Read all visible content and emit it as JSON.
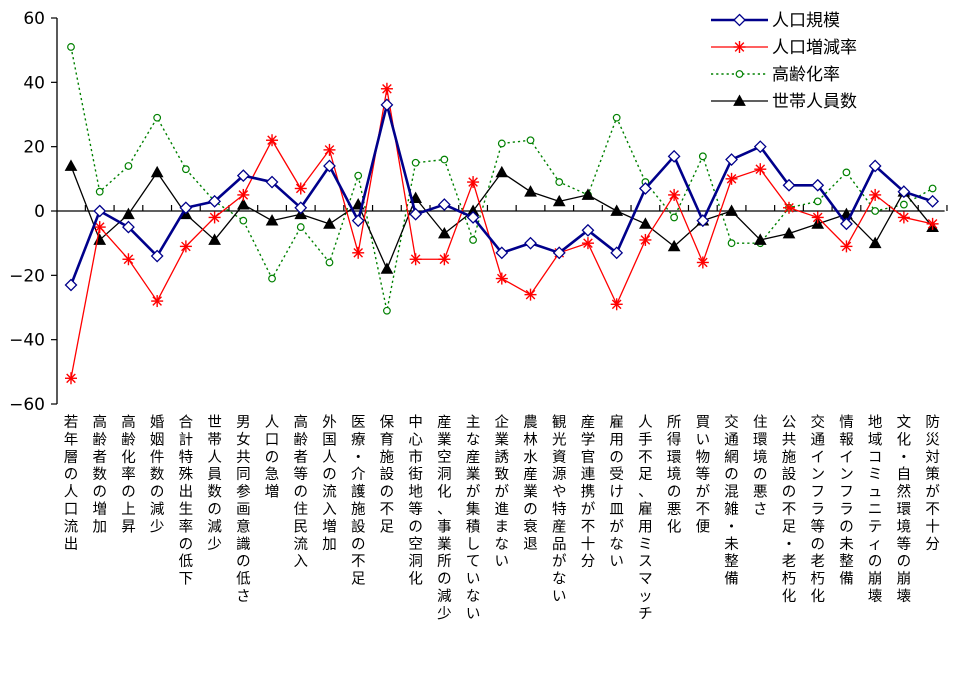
{
  "chart_data": {
    "type": "line",
    "ylim": [
      -60,
      60
    ],
    "yticks": [
      "60",
      "40",
      "20",
      "0",
      "−20",
      "−40",
      "−60"
    ],
    "grid": false,
    "legend_position": "top-right",
    "categories": [
      "若年層の人口流出",
      "高齢者数の増加",
      "高齢化率の上昇",
      "婚姻件数の減少",
      "合計特殊出生率の低下",
      "世帯人員数の減少",
      "男女共同参画意識の低さ",
      "人口の急増",
      "高齢者等の住民流入",
      "外国人の流入増加",
      "医療・介護施設の不足",
      "保育施設の不足",
      "中心市街地等の空洞化",
      "産業空洞化、事業所の減少",
      "主な産業が集積していない",
      "企業誘致が進まない",
      "農林水産業の衰退",
      "観光資源や特産品がない",
      "産学官連携が不十分",
      "雇用の受け皿がない",
      "人手不足、雇用ミスマッチ",
      "所得環境の悪化",
      "買い物等が不便",
      "交通網の混雑・未整備",
      "住環境の悪さ",
      "公共施設の不足・老朽化",
      "交通インフラ等の老朽化",
      "情報インフラの未整備",
      "地域コミュニティの崩壊",
      "文化・自然環境等の崩壊",
      "防災対策が不十分"
    ],
    "series": [
      {
        "name": "人口規模",
        "color": "#00008B",
        "marker": "diamond",
        "line": "solid-thick",
        "values": [
          -23,
          0,
          -5,
          -14,
          1,
          3,
          11,
          9,
          1,
          14,
          -3,
          33,
          -1,
          2,
          -2,
          -13,
          -10,
          -13,
          -6,
          -13,
          7,
          17,
          -3,
          16,
          20,
          8,
          8,
          -4,
          14,
          6,
          3
        ]
      },
      {
        "name": "人口増減率",
        "color": "#FF0000",
        "marker": "asterisk",
        "line": "solid",
        "values": [
          -52,
          -5,
          -15,
          -28,
          -11,
          -2,
          5,
          22,
          7,
          19,
          -13,
          38,
          -15,
          -15,
          9,
          -21,
          -26,
          -13,
          -10,
          -29,
          -9,
          5,
          -16,
          10,
          13,
          1,
          -2,
          -11,
          5,
          -2,
          -4
        ]
      },
      {
        "name": "高齢化率",
        "color": "#008000",
        "marker": "circle",
        "line": "dotted",
        "values": [
          51,
          6,
          14,
          29,
          13,
          3,
          -3,
          -21,
          -5,
          -16,
          11,
          -31,
          15,
          16,
          -9,
          21,
          22,
          9,
          5,
          29,
          9,
          -2,
          17,
          -10,
          -10,
          1,
          3,
          12,
          0,
          2,
          7
        ]
      },
      {
        "name": "世帯人員数",
        "color": "#000000",
        "marker": "triangle",
        "line": "solid",
        "values": [
          14,
          -9,
          -1,
          12,
          -1,
          -9,
          2,
          -3,
          -1,
          -4,
          2,
          -18,
          4,
          -7,
          0,
          12,
          6,
          3,
          5,
          0,
          -4,
          -11,
          -3,
          0,
          -9,
          -7,
          -4,
          -1,
          -10,
          6,
          -5
        ]
      }
    ]
  }
}
